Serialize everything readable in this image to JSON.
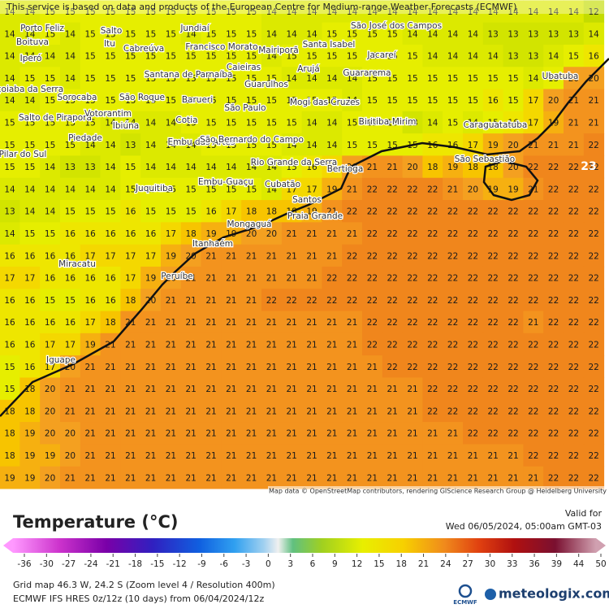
{
  "header": {
    "notice": "This service is based on data and products of the European Centre for Medium-range Weather Forecasts (ECMWF)",
    "attribution": "Map data © OpenStreetMap contributors, rendering GIScience Research Group @ Heidelberg University"
  },
  "map": {
    "max_label": "23",
    "grid": [
      [
        14,
        14,
        15,
        15,
        15,
        15,
        15,
        15,
        15,
        15,
        15,
        15,
        15,
        14,
        14,
        14,
        14,
        14,
        14,
        14,
        14,
        14,
        14,
        14,
        14,
        14,
        14,
        14,
        14,
        12
      ],
      [
        14,
        14,
        15,
        14,
        15,
        15,
        15,
        15,
        15,
        14,
        15,
        15,
        15,
        14,
        14,
        14,
        15,
        15,
        15,
        15,
        14,
        14,
        14,
        14,
        13,
        13,
        13,
        13,
        13,
        14
      ],
      [
        14,
        14,
        14,
        14,
        15,
        15,
        15,
        15,
        15,
        15,
        15,
        15,
        15,
        14,
        15,
        15,
        15,
        15,
        15,
        15,
        15,
        14,
        14,
        14,
        14,
        13,
        13,
        14,
        15,
        16
      ],
      [
        14,
        15,
        15,
        14,
        15,
        15,
        15,
        15,
        15,
        15,
        15,
        15,
        15,
        15,
        14,
        14,
        14,
        14,
        15,
        15,
        15,
        15,
        15,
        15,
        15,
        15,
        14,
        15,
        20,
        20
      ],
      [
        14,
        14,
        15,
        15,
        15,
        15,
        15,
        15,
        15,
        15,
        15,
        15,
        15,
        15,
        15,
        15,
        15,
        14,
        15,
        15,
        15,
        15,
        15,
        15,
        16,
        15,
        17,
        20,
        21,
        21
      ],
      [
        15,
        15,
        15,
        15,
        15,
        14,
        14,
        14,
        14,
        15,
        15,
        15,
        15,
        15,
        15,
        14,
        14,
        15,
        15,
        15,
        13,
        14,
        15,
        14,
        15,
        16,
        17,
        19,
        21,
        21
      ],
      [
        15,
        15,
        15,
        15,
        14,
        14,
        13,
        14,
        14,
        14,
        15,
        15,
        15,
        15,
        14,
        14,
        14,
        15,
        15,
        15,
        15,
        16,
        16,
        17,
        19,
        20,
        21,
        21,
        21,
        22
      ],
      [
        15,
        15,
        14,
        13,
        13,
        14,
        15,
        14,
        14,
        14,
        14,
        14,
        14,
        14,
        15,
        16,
        17,
        20,
        21,
        21,
        20,
        18,
        19,
        18,
        18,
        20,
        22,
        22,
        22,
        22
      ],
      [
        14,
        14,
        14,
        14,
        14,
        14,
        15,
        15,
        15,
        15,
        15,
        15,
        15,
        14,
        17,
        17,
        19,
        21,
        22,
        22,
        22,
        22,
        21,
        20,
        19,
        19,
        21,
        22,
        22,
        22
      ],
      [
        13,
        14,
        14,
        15,
        15,
        15,
        16,
        15,
        15,
        15,
        16,
        17,
        18,
        18,
        18,
        19,
        21,
        22,
        22,
        22,
        22,
        22,
        22,
        22,
        22,
        22,
        22,
        22,
        22,
        22
      ],
      [
        14,
        15,
        15,
        16,
        16,
        16,
        16,
        16,
        17,
        18,
        19,
        19,
        20,
        20,
        21,
        21,
        21,
        21,
        22,
        22,
        22,
        22,
        22,
        22,
        22,
        22,
        22,
        22,
        22,
        22
      ],
      [
        16,
        16,
        16,
        16,
        17,
        17,
        17,
        17,
        19,
        20,
        21,
        21,
        21,
        21,
        21,
        21,
        21,
        22,
        22,
        22,
        22,
        22,
        22,
        22,
        22,
        22,
        22,
        22,
        22,
        22
      ],
      [
        17,
        17,
        16,
        16,
        16,
        16,
        17,
        19,
        20,
        21,
        21,
        21,
        21,
        21,
        21,
        21,
        22,
        22,
        22,
        22,
        22,
        22,
        22,
        22,
        22,
        22,
        22,
        22,
        22,
        22
      ],
      [
        16,
        16,
        15,
        15,
        16,
        16,
        18,
        20,
        21,
        21,
        21,
        21,
        21,
        22,
        22,
        22,
        22,
        22,
        22,
        22,
        22,
        22,
        22,
        22,
        22,
        22,
        22,
        22,
        22,
        22
      ],
      [
        16,
        16,
        16,
        16,
        17,
        18,
        21,
        21,
        21,
        21,
        21,
        21,
        21,
        21,
        21,
        21,
        21,
        21,
        22,
        22,
        22,
        22,
        22,
        22,
        22,
        22,
        21,
        22,
        22,
        22
      ],
      [
        16,
        16,
        17,
        17,
        19,
        21,
        21,
        21,
        21,
        21,
        21,
        21,
        21,
        21,
        21,
        21,
        21,
        21,
        22,
        22,
        22,
        22,
        22,
        22,
        22,
        22,
        22,
        22,
        22,
        22
      ],
      [
        15,
        16,
        17,
        20,
        21,
        21,
        21,
        21,
        21,
        21,
        21,
        21,
        21,
        21,
        21,
        21,
        21,
        21,
        21,
        22,
        22,
        22,
        22,
        22,
        22,
        22,
        22,
        22,
        22,
        22
      ],
      [
        15,
        18,
        20,
        21,
        21,
        21,
        21,
        21,
        21,
        21,
        21,
        21,
        21,
        21,
        21,
        21,
        21,
        21,
        21,
        21,
        21,
        22,
        22,
        22,
        22,
        22,
        22,
        22,
        22,
        22
      ],
      [
        18,
        18,
        20,
        21,
        21,
        21,
        21,
        21,
        21,
        21,
        21,
        21,
        21,
        21,
        21,
        21,
        21,
        21,
        21,
        21,
        21,
        22,
        22,
        22,
        22,
        22,
        22,
        22,
        22,
        22
      ],
      [
        18,
        19,
        20,
        20,
        21,
        21,
        21,
        21,
        21,
        21,
        21,
        21,
        21,
        21,
        21,
        21,
        21,
        21,
        21,
        21,
        21,
        21,
        21,
        22,
        22,
        22,
        22,
        22,
        22,
        22
      ],
      [
        18,
        19,
        19,
        20,
        21,
        21,
        21,
        21,
        21,
        21,
        21,
        21,
        21,
        21,
        21,
        21,
        21,
        21,
        21,
        21,
        21,
        21,
        21,
        21,
        21,
        21,
        22,
        22,
        22,
        22
      ],
      [
        19,
        19,
        20,
        21,
        21,
        21,
        21,
        21,
        21,
        21,
        21,
        21,
        21,
        21,
        21,
        21,
        21,
        21,
        21,
        21,
        21,
        21,
        21,
        21,
        21,
        21,
        21,
        22,
        22,
        22
      ]
    ],
    "places": [
      "Porto Feliz",
      "Salto",
      "Itu",
      "Jundiaí",
      "Cabreúva",
      "Francisco Morato",
      "Mairiporã",
      "Santa Isabel",
      "São José dos Campos",
      "Jacareí",
      "Boituva",
      "Iperó",
      "Caieiras",
      "Santana de Parnaíba",
      "Arujá",
      "Guararema",
      "Ubatuba",
      "Guarulhos",
      "Araçoiaba da Serra",
      "Sorocaba",
      "São Roque",
      "Barueri",
      "Mogi das Cruzes",
      "São Paulo",
      "Salto de Pirapora",
      "Votorantim",
      "Ibiúna",
      "Cotia",
      "Biritiba-Mirim",
      "Caraguatatuba",
      "Piedade",
      "Embu das Artes",
      "São Bernardo do Campo",
      "Pilar do Sul",
      "Rio Grande da Serra",
      "Bertioga",
      "São Sebastião",
      "Embu-Guaçu",
      "Juquitiba",
      "Cubatão",
      "Santos",
      "Praia Grande",
      "Mongaguá",
      "Itanhaém",
      "Miracatu",
      "Peruíbe",
      "Iguape"
    ]
  },
  "legend": {
    "title": "Temperature (°C)",
    "valid_label": "Valid for",
    "valid_time": "Wed 06/05/2024, 05:00am GMT-03",
    "ticks": [
      -36,
      -30,
      -27,
      -24,
      -21,
      -18,
      -15,
      -12,
      -9,
      -6,
      -3,
      0,
      3,
      6,
      9,
      12,
      15,
      18,
      21,
      24,
      27,
      30,
      33,
      36,
      39,
      44,
      50
    ]
  },
  "footer": {
    "grid_info": "Grid map 46.3 W, 24.2 S (Zoom level 4 / Resolution 400m)",
    "model_info": "ECMWF IFS HRES 0z/12z (10 days) from 06/04/2024/12z",
    "ecmwf_logo": "ECMWF",
    "brand": "meteologix.com"
  }
}
